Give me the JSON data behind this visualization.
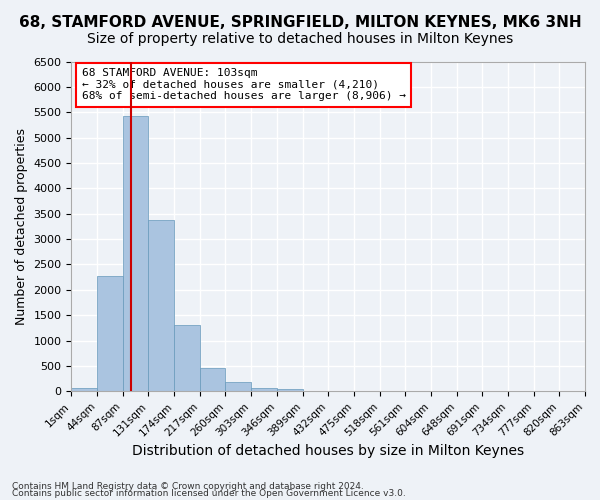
{
  "title": "68, STAMFORD AVENUE, SPRINGFIELD, MILTON KEYNES, MK6 3NH",
  "subtitle": "Size of property relative to detached houses in Milton Keynes",
  "xlabel": "Distribution of detached houses by size in Milton Keynes",
  "ylabel": "Number of detached properties",
  "footer_line1": "Contains HM Land Registry data © Crown copyright and database right 2024.",
  "footer_line2": "Contains public sector information licensed under the Open Government Licence v3.0.",
  "bin_labels": [
    "1sqm",
    "44sqm",
    "87sqm",
    "131sqm",
    "174sqm",
    "217sqm",
    "260sqm",
    "303sqm",
    "346sqm",
    "389sqm",
    "432sqm",
    "475sqm",
    "518sqm",
    "561sqm",
    "604sqm",
    "648sqm",
    "691sqm",
    "734sqm",
    "777sqm",
    "820sqm",
    "863sqm"
  ],
  "bar_heights": [
    75,
    2280,
    5420,
    3380,
    1310,
    470,
    185,
    70,
    40,
    15,
    8,
    4,
    3,
    2,
    1,
    1,
    1,
    0,
    0,
    0
  ],
  "bar_color": "#aac4e0",
  "bar_edge_color": "#6699bb",
  "red_line_x": 2.32,
  "red_line_color": "#cc0000",
  "annotation_line1": "68 STAMFORD AVENUE: 103sqm",
  "annotation_line2": "← 32% of detached houses are smaller (4,210)",
  "annotation_line3": "68% of semi-detached houses are larger (8,906) →",
  "ylim": [
    0,
    6500
  ],
  "yticks": [
    0,
    500,
    1000,
    1500,
    2000,
    2500,
    3000,
    3500,
    4000,
    4500,
    5000,
    5500,
    6000,
    6500
  ],
  "background_color": "#eef2f7",
  "grid_color": "#ffffff",
  "title_fontsize": 11,
  "subtitle_fontsize": 10,
  "xlabel_fontsize": 10,
  "ylabel_fontsize": 9,
  "annotation_fontsize": 8
}
